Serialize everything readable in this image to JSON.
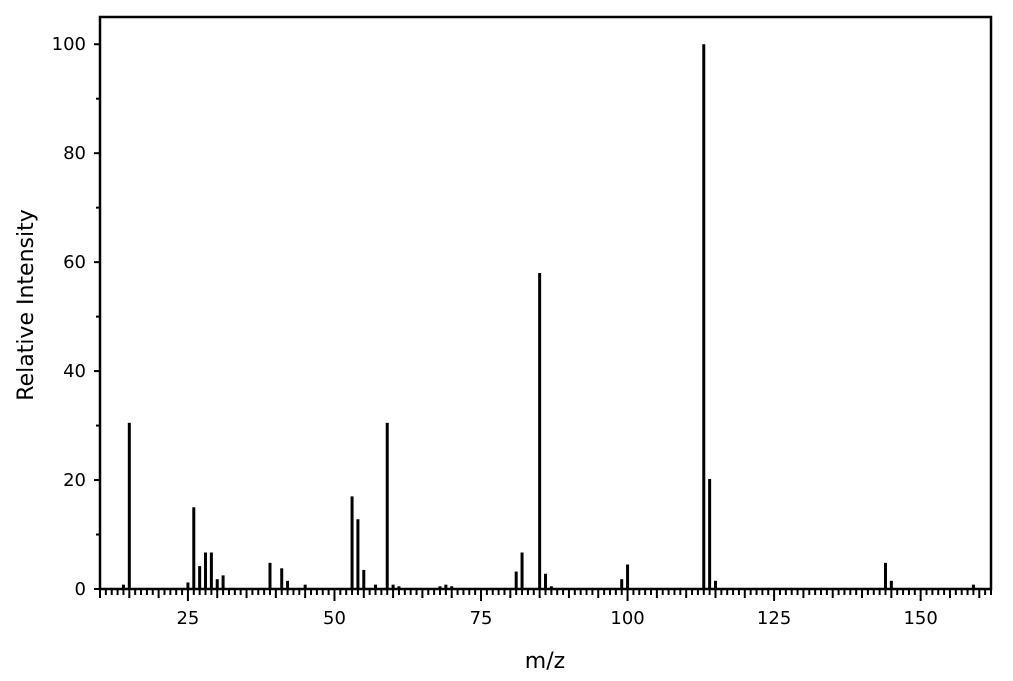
{
  "chart_data": {
    "type": "bar",
    "title": "",
    "xlabel": "m/z",
    "ylabel": "Relative Intensity",
    "xlim": [
      10,
      162
    ],
    "ylim": [
      0,
      105
    ],
    "xticks": [
      25,
      50,
      75,
      100,
      125,
      150
    ],
    "yticks": [
      0,
      20,
      40,
      60,
      80,
      100
    ],
    "grid": false,
    "legend": "none",
    "bar_color": "#000000",
    "x": [
      14,
      15,
      25,
      26,
      27,
      28,
      29,
      30,
      31,
      39,
      41,
      42,
      45,
      53,
      54,
      55,
      57,
      59,
      60,
      61,
      68,
      69,
      70,
      81,
      82,
      85,
      86,
      87,
      99,
      100,
      113,
      114,
      115,
      144,
      145,
      159
    ],
    "values": [
      0.8,
      30.5,
      1.2,
      15,
      4.2,
      6.7,
      6.7,
      1.8,
      2.5,
      4.8,
      3.8,
      1.5,
      0.8,
      17,
      12.8,
      3.5,
      0.8,
      30.5,
      0.8,
      0.5,
      0.5,
      0.8,
      0.5,
      3.2,
      6.7,
      58,
      2.8,
      0.5,
      1.8,
      4.5,
      100,
      20.2,
      1.5,
      4.8,
      1.5,
      0.8
    ]
  }
}
